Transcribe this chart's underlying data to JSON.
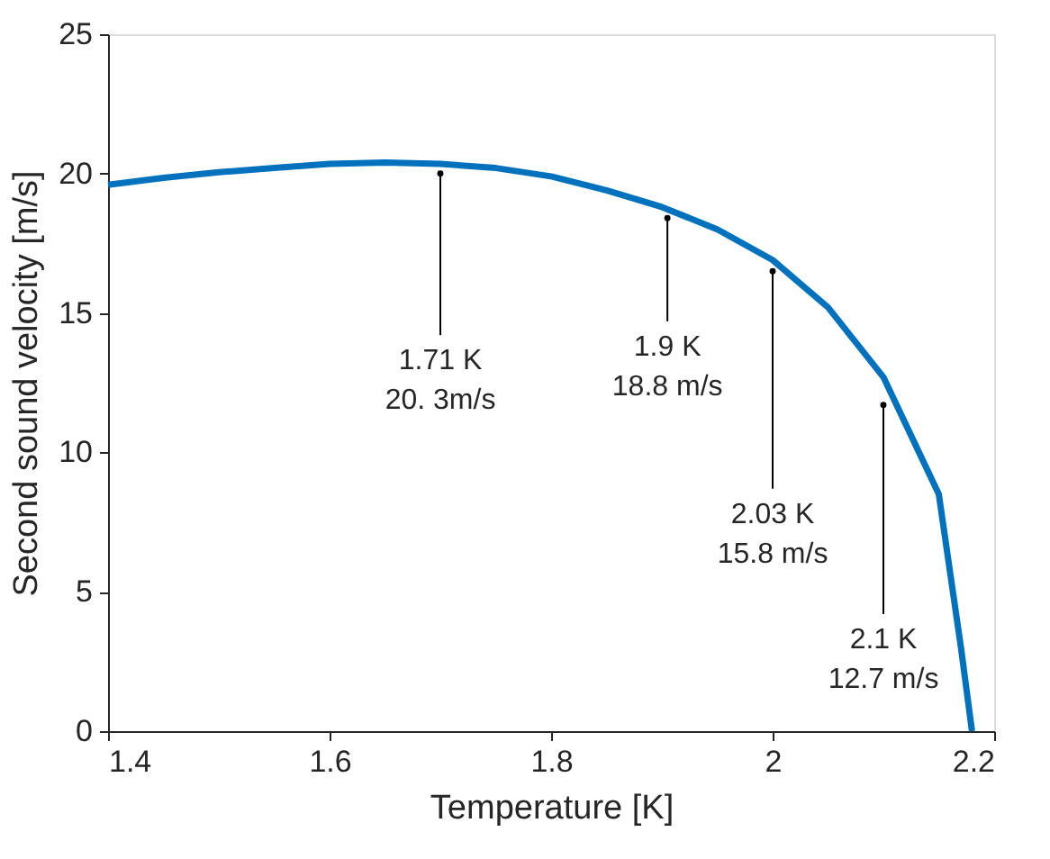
{
  "chart_data": {
    "type": "line",
    "xlabel": "Temperature [K]",
    "ylabel": "Second sound velocity [m/s]",
    "x": [
      1.4,
      1.45,
      1.5,
      1.55,
      1.6,
      1.65,
      1.7,
      1.75,
      1.8,
      1.85,
      1.9,
      1.95,
      2.0,
      2.05,
      2.1,
      2.15,
      2.17,
      2.18
    ],
    "series": [
      {
        "color": "#0072bd",
        "values": [
          19.6,
          19.85,
          20.05,
          20.2,
          20.35,
          20.4,
          20.35,
          20.2,
          19.9,
          19.4,
          18.8,
          18.0,
          16.9,
          15.2,
          12.7,
          8.5,
          3.0,
          0
        ]
      }
    ],
    "xlim": [
      1.4,
      2.2
    ],
    "xticks": [
      1.4,
      1.6,
      1.8,
      2,
      2.2
    ],
    "ylim": [
      0,
      25
    ],
    "yticks": [
      0,
      5,
      10,
      15,
      20,
      25
    ],
    "grid": false,
    "marker": "none",
    "line_style": "solid",
    "annotations": [
      {
        "text": "1.71 K\n20. 3m/s",
        "x": 1.7,
        "y": 20.0
      },
      {
        "text": "1.9 K\n18.8 m/s",
        "x": 1.905,
        "y": 18.4
      },
      {
        "text": "2.03 K\n15.8 m/s",
        "x": 2.0,
        "y": 16.5
      },
      {
        "text": "2.1 K\n12.7 m/s",
        "x": 2.1,
        "y": 11.7
      }
    ]
  }
}
